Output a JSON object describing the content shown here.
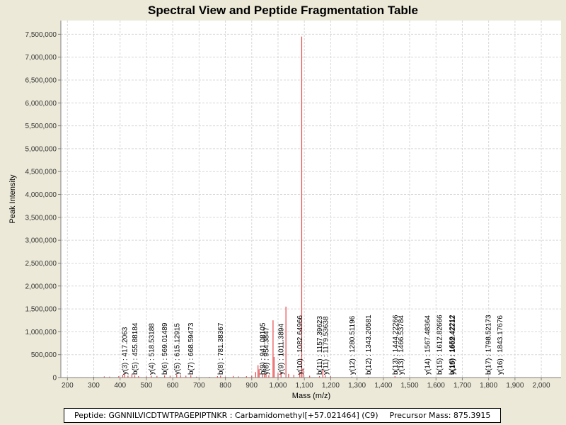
{
  "chart_data": {
    "type": "bar",
    "title": "Spectral View and Peptide Fragmentation Table",
    "xlabel": "Mass (m/z)",
    "ylabel": "Peak Intensity",
    "xlim": [
      175,
      2075
    ],
    "ylim": [
      0,
      7800000
    ],
    "x_ticks": [
      200,
      300,
      400,
      500,
      600,
      700,
      800,
      900,
      1000,
      1100,
      1200,
      1300,
      1400,
      1500,
      1600,
      1700,
      1800,
      1900,
      2000
    ],
    "x_tick_labels": [
      "200",
      "300",
      "400",
      "500",
      "600",
      "700",
      "800",
      "900",
      "1,000",
      "1,100",
      "1,200",
      "1,300",
      "1,400",
      "1,500",
      "1,600",
      "1,700",
      "1,800",
      "1,900",
      "2,000"
    ],
    "y_ticks": [
      0,
      500000,
      1000000,
      1500000,
      2000000,
      2500000,
      3000000,
      3500000,
      4000000,
      4500000,
      5000000,
      5500000,
      6000000,
      6500000,
      7000000,
      7500000
    ],
    "y_tick_labels": [
      "0",
      "500,000",
      "1,000,000",
      "1,500,000",
      "2,000,000",
      "2,500,000",
      "3,000,000",
      "3,500,000",
      "4,000,000",
      "4,500,000",
      "5,000,000",
      "5,500,000",
      "6,000,000",
      "6,500,000",
      "7,000,000",
      "7,500,000"
    ],
    "grid": true,
    "series_color": "#e8474a",
    "peaks": [
      {
        "mz": 300,
        "intensity": 15000
      },
      {
        "mz": 340,
        "intensity": 25000
      },
      {
        "mz": 360,
        "intensity": 20000
      },
      {
        "mz": 395,
        "intensity": 30000
      },
      {
        "mz": 410,
        "intensity": 60000
      },
      {
        "mz": 417.2,
        "intensity": 90000
      },
      {
        "mz": 430,
        "intensity": 40000
      },
      {
        "mz": 445,
        "intensity": 70000
      },
      {
        "mz": 455.9,
        "intensity": 50000
      },
      {
        "mz": 470,
        "intensity": 30000
      },
      {
        "mz": 500,
        "intensity": 25000
      },
      {
        "mz": 518.5,
        "intensity": 40000
      },
      {
        "mz": 540,
        "intensity": 35000
      },
      {
        "mz": 569,
        "intensity": 45000
      },
      {
        "mz": 590,
        "intensity": 40000
      },
      {
        "mz": 615.1,
        "intensity": 60000
      },
      {
        "mz": 630,
        "intensity": 50000
      },
      {
        "mz": 650,
        "intensity": 40000
      },
      {
        "mz": 668.6,
        "intensity": 50000
      },
      {
        "mz": 690,
        "intensity": 20000
      },
      {
        "mz": 740,
        "intensity": 15000
      },
      {
        "mz": 770,
        "intensity": 30000
      },
      {
        "mz": 781.4,
        "intensity": 40000
      },
      {
        "mz": 800,
        "intensity": 20000
      },
      {
        "mz": 830,
        "intensity": 35000
      },
      {
        "mz": 850,
        "intensity": 25000
      },
      {
        "mz": 880,
        "intensity": 30000
      },
      {
        "mz": 900,
        "intensity": 40000
      },
      {
        "mz": 915,
        "intensity": 120000
      },
      {
        "mz": 924,
        "intensity": 270000
      },
      {
        "mz": 928,
        "intensity": 180000
      },
      {
        "mz": 941.1,
        "intensity": 80000
      },
      {
        "mz": 948,
        "intensity": 60000
      },
      {
        "mz": 954.4,
        "intensity": 90000
      },
      {
        "mz": 965,
        "intensity": 50000
      },
      {
        "mz": 981,
        "intensity": 1250000
      },
      {
        "mz": 985,
        "intensity": 450000
      },
      {
        "mz": 1000,
        "intensity": 100000
      },
      {
        "mz": 1011.4,
        "intensity": 120000
      },
      {
        "mz": 1030,
        "intensity": 1550000
      },
      {
        "mz": 1040,
        "intensity": 80000
      },
      {
        "mz": 1060,
        "intensity": 60000
      },
      {
        "mz": 1082.6,
        "intensity": 100000
      },
      {
        "mz": 1090,
        "intensity": 7450000
      },
      {
        "mz": 1095,
        "intensity": 200000
      },
      {
        "mz": 1120,
        "intensity": 40000
      },
      {
        "mz": 1157.4,
        "intensity": 30000
      },
      {
        "mz": 1170,
        "intensity": 180000
      },
      {
        "mz": 1179.5,
        "intensity": 50000
      },
      {
        "mz": 1200,
        "intensity": 30000
      },
      {
        "mz": 1280.5,
        "intensity": 20000
      },
      {
        "mz": 1343.2,
        "intensity": 15000
      },
      {
        "mz": 1444.2,
        "intensity": 30000
      },
      {
        "mz": 1466.5,
        "intensity": 15000
      }
    ],
    "annotations": [
      {
        "mz": 417.2063,
        "text": "y(3) : 417.2063"
      },
      {
        "mz": 455.88184,
        "text": "b(5) : 455.88184"
      },
      {
        "mz": 518.53188,
        "text": "y(4) : 518.53188"
      },
      {
        "mz": 569.01489,
        "text": "b(6) : 569.01489"
      },
      {
        "mz": 615.12915,
        "text": "y(5) : 615.12915"
      },
      {
        "mz": 668.59473,
        "text": "b(7) : 668.59473"
      },
      {
        "mz": 781.38367,
        "text": "b(8) : 781.38367"
      },
      {
        "mz": 941.08105,
        "text": "b(9) : 941.08105"
      },
      {
        "mz": 954.3847,
        "text": "y(8) : 954.3847"
      },
      {
        "mz": 1011.3894,
        "text": "y(9) : 1011.3894"
      },
      {
        "mz": 1082.64966,
        "text": "y(10) : 1082.64966"
      },
      {
        "mz": 1157.39623,
        "text": "b(11) : 1157.39623"
      },
      {
        "mz": 1179.53638,
        "text": "y(11) : 1179.53638"
      },
      {
        "mz": 1280.51196,
        "text": "y(12) : 1280.51196"
      },
      {
        "mz": 1343.20581,
        "text": "b(12) : 1343.20581"
      },
      {
        "mz": 1444.22266,
        "text": "b(13) : 1444.22266"
      },
      {
        "mz": 1466.53784,
        "text": "y(13) : 1466.53784"
      },
      {
        "mz": 1567.48364,
        "text": "y(14) : 1567.48364"
      },
      {
        "mz": 1612.82666,
        "text": "b(15) : 1612.82666"
      },
      {
        "mz": 1659.42212,
        "text": "b(16) : 1659.42212"
      },
      {
        "mz": 1662.42212,
        "text": "y(15) : 1662.42212"
      },
      {
        "mz": 1798.52173,
        "text": "b(17) : 1798.52173"
      },
      {
        "mz": 1843.17676,
        "text": "y(16) : 1843.17676"
      }
    ]
  },
  "footer": {
    "peptide": "Peptide: GGNNILVICDTWTPAGEPIPTNKR : Carbamidomethyl[+57.021464] (C9)",
    "precursor": "Precursor Mass: 875.3915"
  }
}
